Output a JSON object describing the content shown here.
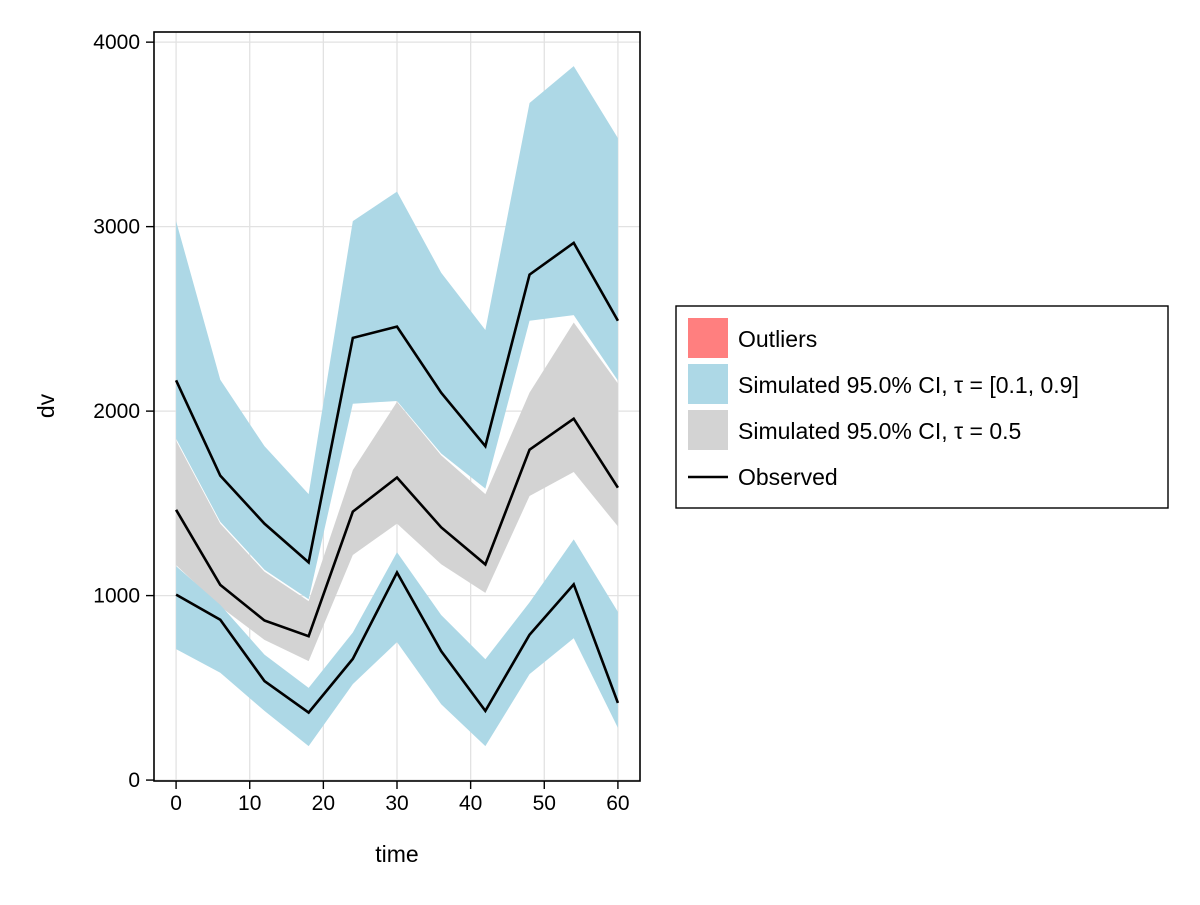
{
  "chart_data": {
    "type": "area",
    "xlabel": "time",
    "ylabel": "dv",
    "xlim": [
      -3,
      63
    ],
    "ylim": [
      -5,
      4055
    ],
    "xticks": [
      0,
      10,
      20,
      30,
      40,
      50,
      60
    ],
    "yticks": [
      0,
      1000,
      2000,
      3000,
      4000
    ],
    "grid": true,
    "legend_position": "right",
    "x": [
      0,
      6,
      12,
      18,
      24,
      30,
      36,
      42,
      48,
      54,
      60
    ],
    "bands": [
      {
        "name": "Simulated 95.0% CI, τ = [0.1, 0.9]",
        "quantile": 0.9,
        "color": "#add8e6",
        "upper": [
          3030,
          2170,
          1810,
          1550,
          3030,
          3190,
          2750,
          2440,
          3670,
          3870,
          3480
        ],
        "lower": [
          1850,
          1400,
          1140,
          980,
          2040,
          2055,
          1770,
          1580,
          2490,
          2520,
          2165
        ]
      },
      {
        "name": "Simulated 95.0% CI, τ = 0.5",
        "quantile": 0.5,
        "color": "#d3d3d3",
        "upper": [
          1840,
          1390,
          1130,
          970,
          1680,
          2050,
          1760,
          1550,
          2100,
          2480,
          2150
        ],
        "lower": [
          1165,
          940,
          760,
          645,
          1220,
          1390,
          1170,
          1015,
          1540,
          1670,
          1375
        ]
      },
      {
        "name": "Simulated 95.0% CI, τ = [0.1, 0.9]",
        "quantile": 0.1,
        "color": "#add8e6",
        "upper": [
          1160,
          950,
          680,
          500,
          800,
          1235,
          895,
          655,
          963,
          1305,
          912
        ],
        "lower": [
          710,
          582,
          375,
          184,
          520,
          748,
          411,
          184,
          574,
          769,
          283
        ]
      }
    ],
    "series": [
      {
        "name": "Observed",
        "quantile": 0.9,
        "color": "#000000",
        "values": [
          2167,
          1650,
          1390,
          1180,
          2397,
          2458,
          2100,
          1810,
          2740,
          2912,
          2490
        ]
      },
      {
        "name": "Observed",
        "quantile": 0.5,
        "color": "#000000",
        "values": [
          1465,
          1058,
          865,
          780,
          1455,
          1640,
          1370,
          1169,
          1791,
          1959,
          1585
        ]
      },
      {
        "name": "Observed",
        "quantile": 0.1,
        "color": "#000000",
        "values": [
          1005,
          869,
          537,
          366,
          657,
          1125,
          699,
          375,
          788,
          1061,
          418
        ]
      }
    ],
    "legend": [
      {
        "label": "Outliers",
        "kind": "patch",
        "color": "#ff7f7f"
      },
      {
        "label": "Simulated 95.0% CI, τ = [0.1, 0.9]",
        "kind": "patch",
        "color": "#add8e6"
      },
      {
        "label": "Simulated 95.0% CI, τ = 0.5",
        "kind": "patch",
        "color": "#d3d3d3"
      },
      {
        "label": "Observed",
        "kind": "line",
        "color": "#000000"
      }
    ]
  }
}
